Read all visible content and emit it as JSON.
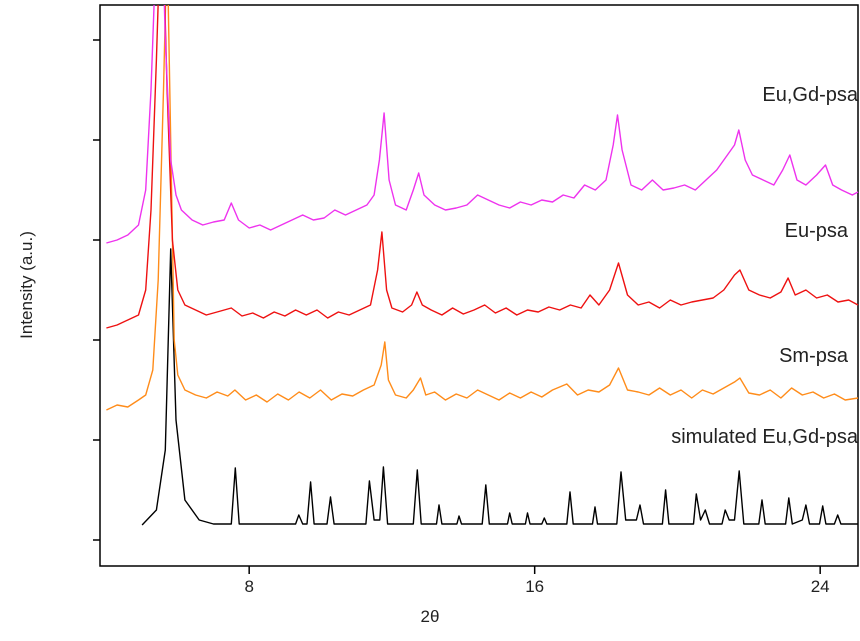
{
  "chart_data": {
    "type": "line",
    "y_label": "Intensity (a.u.)",
    "x_label": "2θ",
    "xlim": [
      3.82,
      25.06
    ],
    "xticks": [
      8,
      16,
      24
    ],
    "ylim": [
      -0.26,
      5.35
    ],
    "yticks": [
      0,
      1,
      2,
      3,
      4,
      5
    ],
    "series": [
      {
        "name": "simulated Eu,Gd-psa",
        "color": "#000000",
        "x": [
          5.0,
          5.4,
          5.65,
          5.8,
          5.95,
          6.2,
          6.6,
          7.0,
          7.5,
          7.61,
          7.72,
          9.3,
          9.39,
          9.5,
          9.62,
          9.72,
          9.82,
          10.18,
          10.28,
          10.38,
          11.27,
          11.37,
          11.5,
          11.66,
          11.76,
          11.88,
          12.6,
          12.71,
          12.82,
          13.25,
          13.32,
          13.4,
          13.82,
          13.88,
          13.95,
          14.53,
          14.63,
          14.73,
          15.24,
          15.3,
          15.37,
          15.74,
          15.8,
          15.87,
          16.2,
          16.27,
          16.34,
          16.9,
          16.99,
          17.08,
          17.62,
          17.69,
          17.76,
          18.3,
          18.42,
          18.55,
          18.85,
          18.95,
          19.05,
          19.58,
          19.67,
          19.76,
          20.45,
          20.53,
          20.65,
          20.78,
          20.9,
          21.25,
          21.34,
          21.45,
          21.6,
          21.73,
          21.86,
          22.28,
          22.37,
          22.46,
          23.03,
          23.12,
          23.22,
          23.5,
          23.6,
          23.7,
          23.98,
          24.07,
          24.16,
          24.4,
          24.49,
          24.58,
          25.06
        ],
        "values": [
          0.15,
          0.3,
          0.9,
          2.91,
          1.2,
          0.4,
          0.2,
          0.16,
          0.16,
          0.72,
          0.16,
          0.16,
          0.25,
          0.16,
          0.16,
          0.58,
          0.16,
          0.16,
          0.43,
          0.16,
          0.16,
          0.59,
          0.2,
          0.2,
          0.73,
          0.16,
          0.16,
          0.7,
          0.16,
          0.16,
          0.35,
          0.16,
          0.16,
          0.24,
          0.16,
          0.16,
          0.55,
          0.16,
          0.16,
          0.27,
          0.16,
          0.16,
          0.27,
          0.16,
          0.16,
          0.22,
          0.16,
          0.16,
          0.48,
          0.16,
          0.16,
          0.33,
          0.16,
          0.16,
          0.68,
          0.2,
          0.2,
          0.35,
          0.16,
          0.16,
          0.5,
          0.16,
          0.16,
          0.46,
          0.2,
          0.3,
          0.16,
          0.16,
          0.3,
          0.2,
          0.2,
          0.69,
          0.16,
          0.16,
          0.4,
          0.16,
          0.16,
          0.42,
          0.16,
          0.2,
          0.35,
          0.16,
          0.16,
          0.34,
          0.16,
          0.16,
          0.25,
          0.16,
          0.16
        ]
      },
      {
        "name": "Sm-psa",
        "color": "#ff8c1a",
        "x": [
          4.0,
          4.3,
          4.6,
          4.9,
          5.1,
          5.3,
          5.45,
          5.6,
          5.7,
          5.8,
          5.9,
          6.0,
          6.2,
          6.5,
          6.8,
          7.1,
          7.4,
          7.6,
          7.9,
          8.2,
          8.5,
          8.8,
          9.1,
          9.4,
          9.7,
          10.0,
          10.3,
          10.6,
          10.9,
          11.2,
          11.5,
          11.7,
          11.8,
          11.9,
          12.1,
          12.4,
          12.6,
          12.8,
          12.95,
          13.2,
          13.5,
          13.8,
          14.1,
          14.4,
          14.7,
          15.0,
          15.3,
          15.6,
          15.9,
          16.2,
          16.5,
          16.9,
          17.2,
          17.5,
          17.8,
          18.1,
          18.35,
          18.6,
          18.9,
          19.2,
          19.5,
          19.8,
          20.1,
          20.4,
          20.7,
          21.0,
          21.3,
          21.6,
          21.75,
          22.0,
          22.3,
          22.6,
          22.9,
          23.2,
          23.5,
          23.8,
          24.1,
          24.4,
          24.7,
          25.06
        ],
        "values": [
          1.3,
          1.35,
          1.33,
          1.4,
          1.45,
          1.7,
          2.6,
          4.5,
          6.0,
          4.0,
          2.0,
          1.65,
          1.5,
          1.45,
          1.42,
          1.48,
          1.44,
          1.5,
          1.4,
          1.45,
          1.38,
          1.46,
          1.4,
          1.48,
          1.42,
          1.5,
          1.4,
          1.46,
          1.44,
          1.5,
          1.55,
          1.75,
          1.98,
          1.6,
          1.45,
          1.42,
          1.5,
          1.62,
          1.45,
          1.48,
          1.4,
          1.46,
          1.42,
          1.5,
          1.45,
          1.4,
          1.47,
          1.42,
          1.48,
          1.43,
          1.5,
          1.56,
          1.45,
          1.5,
          1.48,
          1.55,
          1.72,
          1.5,
          1.48,
          1.45,
          1.52,
          1.45,
          1.5,
          1.42,
          1.5,
          1.46,
          1.52,
          1.58,
          1.62,
          1.47,
          1.45,
          1.5,
          1.42,
          1.52,
          1.45,
          1.48,
          1.42,
          1.46,
          1.4,
          1.42
        ]
      },
      {
        "name": "Eu-psa",
        "color": "#ee1111",
        "x": [
          4.0,
          4.3,
          4.6,
          4.9,
          5.1,
          5.25,
          5.4,
          5.55,
          5.7,
          5.85,
          6.0,
          6.2,
          6.5,
          6.8,
          7.1,
          7.5,
          7.8,
          8.1,
          8.4,
          8.7,
          9.0,
          9.3,
          9.6,
          9.9,
          10.2,
          10.5,
          10.8,
          11.1,
          11.4,
          11.6,
          11.72,
          11.85,
          12.0,
          12.3,
          12.55,
          12.7,
          12.85,
          13.1,
          13.4,
          13.7,
          14.0,
          14.3,
          14.6,
          14.9,
          15.2,
          15.5,
          15.8,
          16.1,
          16.4,
          16.7,
          17.0,
          17.3,
          17.55,
          17.8,
          18.1,
          18.35,
          18.6,
          18.9,
          19.2,
          19.5,
          19.8,
          20.1,
          20.4,
          20.7,
          21.0,
          21.3,
          21.6,
          21.75,
          22.0,
          22.3,
          22.6,
          22.9,
          23.1,
          23.3,
          23.6,
          23.9,
          24.2,
          24.5,
          24.8,
          25.06
        ],
        "values": [
          2.12,
          2.15,
          2.2,
          2.25,
          2.5,
          3.3,
          4.8,
          6.5,
          4.5,
          3.0,
          2.5,
          2.35,
          2.3,
          2.25,
          2.28,
          2.32,
          2.24,
          2.27,
          2.22,
          2.28,
          2.24,
          2.3,
          2.25,
          2.3,
          2.22,
          2.28,
          2.25,
          2.3,
          2.35,
          2.7,
          3.08,
          2.5,
          2.32,
          2.28,
          2.35,
          2.48,
          2.35,
          2.3,
          2.25,
          2.32,
          2.26,
          2.3,
          2.35,
          2.27,
          2.32,
          2.25,
          2.3,
          2.28,
          2.33,
          2.3,
          2.35,
          2.32,
          2.45,
          2.35,
          2.5,
          2.77,
          2.45,
          2.35,
          2.38,
          2.32,
          2.4,
          2.35,
          2.38,
          2.4,
          2.42,
          2.5,
          2.65,
          2.7,
          2.5,
          2.45,
          2.42,
          2.48,
          2.62,
          2.45,
          2.5,
          2.42,
          2.45,
          2.38,
          2.4,
          2.35
        ]
      },
      {
        "name": "Eu,Gd-psa",
        "color": "#ee33ee",
        "x": [
          4.0,
          4.3,
          4.6,
          4.9,
          5.1,
          5.25,
          5.4,
          5.5,
          5.65,
          5.8,
          5.95,
          6.1,
          6.4,
          6.7,
          7.0,
          7.3,
          7.5,
          7.7,
          8.0,
          8.3,
          8.6,
          8.9,
          9.2,
          9.5,
          9.8,
          10.1,
          10.4,
          10.7,
          11.0,
          11.3,
          11.5,
          11.65,
          11.78,
          11.92,
          12.1,
          12.4,
          12.6,
          12.75,
          12.9,
          13.2,
          13.5,
          13.8,
          14.1,
          14.4,
          14.7,
          15.0,
          15.3,
          15.6,
          15.9,
          16.2,
          16.5,
          16.8,
          17.1,
          17.4,
          17.7,
          18.0,
          18.2,
          18.32,
          18.45,
          18.7,
          19.0,
          19.3,
          19.6,
          19.9,
          20.2,
          20.5,
          20.8,
          21.1,
          21.4,
          21.6,
          21.72,
          21.9,
          22.1,
          22.4,
          22.7,
          22.95,
          23.15,
          23.35,
          23.6,
          23.9,
          24.15,
          24.35,
          24.6,
          24.9,
          25.06
        ],
        "values": [
          2.97,
          3.0,
          3.05,
          3.15,
          3.5,
          4.5,
          6.0,
          7.0,
          5.0,
          3.8,
          3.45,
          3.3,
          3.2,
          3.15,
          3.18,
          3.2,
          3.37,
          3.2,
          3.12,
          3.15,
          3.1,
          3.15,
          3.2,
          3.25,
          3.2,
          3.22,
          3.3,
          3.25,
          3.3,
          3.35,
          3.45,
          3.8,
          4.27,
          3.6,
          3.35,
          3.3,
          3.5,
          3.67,
          3.45,
          3.35,
          3.3,
          3.32,
          3.35,
          3.45,
          3.4,
          3.35,
          3.32,
          3.38,
          3.35,
          3.4,
          3.38,
          3.45,
          3.42,
          3.55,
          3.5,
          3.6,
          3.95,
          4.25,
          3.9,
          3.55,
          3.5,
          3.6,
          3.5,
          3.52,
          3.55,
          3.5,
          3.6,
          3.7,
          3.85,
          3.95,
          4.1,
          3.8,
          3.65,
          3.6,
          3.55,
          3.7,
          3.85,
          3.6,
          3.55,
          3.65,
          3.75,
          3.55,
          3.5,
          3.45,
          3.48
        ]
      }
    ]
  }
}
